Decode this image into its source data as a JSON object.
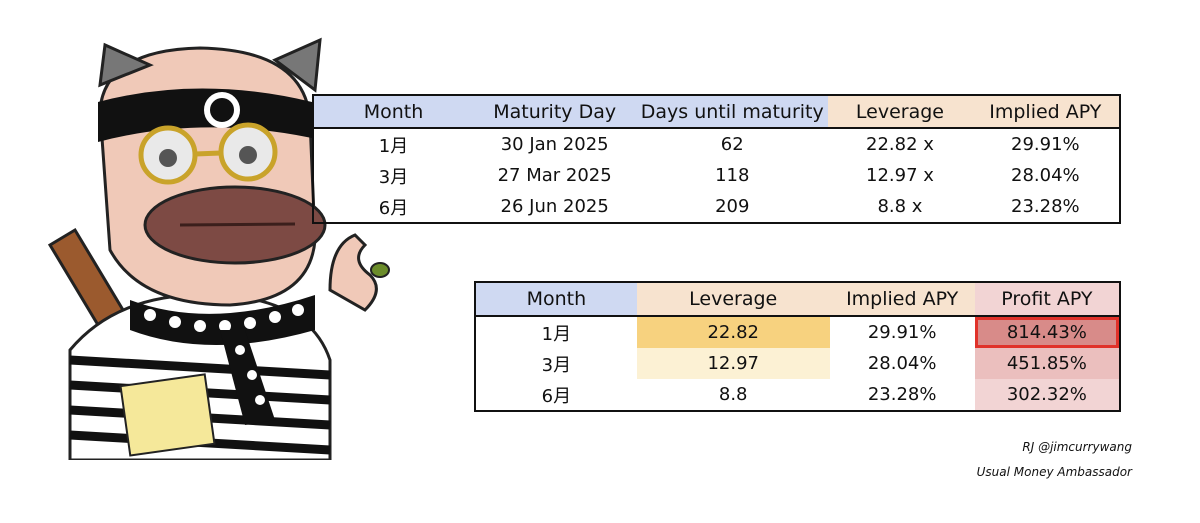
{
  "table1": {
    "headers": [
      "Month",
      "Maturity Day",
      "Days until maturity",
      "Leverage",
      "Implied APY"
    ],
    "header_colors": [
      "#cfd9f2",
      "#cfd9f2",
      "#cfd9f2",
      "#f7e3cf",
      "#f7e3cf"
    ],
    "rows": [
      [
        "1月",
        "30 Jan 2025",
        "62",
        "22.82 x",
        "29.91%"
      ],
      [
        "3月",
        "27 Mar 2025",
        "118",
        "12.97 x",
        "28.04%"
      ],
      [
        "6月",
        "26 Jun 2025",
        "209",
        "8.8 x",
        "23.28%"
      ]
    ]
  },
  "table2": {
    "headers": [
      "Month",
      "Leverage",
      "Implied APY",
      "Profit APY"
    ],
    "header_colors": [
      "#cfd9f2",
      "#f7e3cf",
      "#f7e3cf",
      "#f2d4d4"
    ],
    "rows": [
      [
        "1月",
        "22.82",
        "29.91%",
        "814.43%"
      ],
      [
        "3月",
        "12.97",
        "28.04%",
        "451.85%"
      ],
      [
        "6月",
        "8.8",
        "23.28%",
        "302.32%"
      ]
    ],
    "leverage_colors": [
      "#f7d27f",
      "#fcf1d4",
      "#ffffff"
    ],
    "profit_colors": [
      "#d88b89",
      "#ebbfbe",
      "#f2d4d4"
    ],
    "highlight_color": "#e0322a"
  },
  "credits": {
    "author": "RJ @jimcurrywang",
    "role": "Usual Money Ambassador"
  }
}
